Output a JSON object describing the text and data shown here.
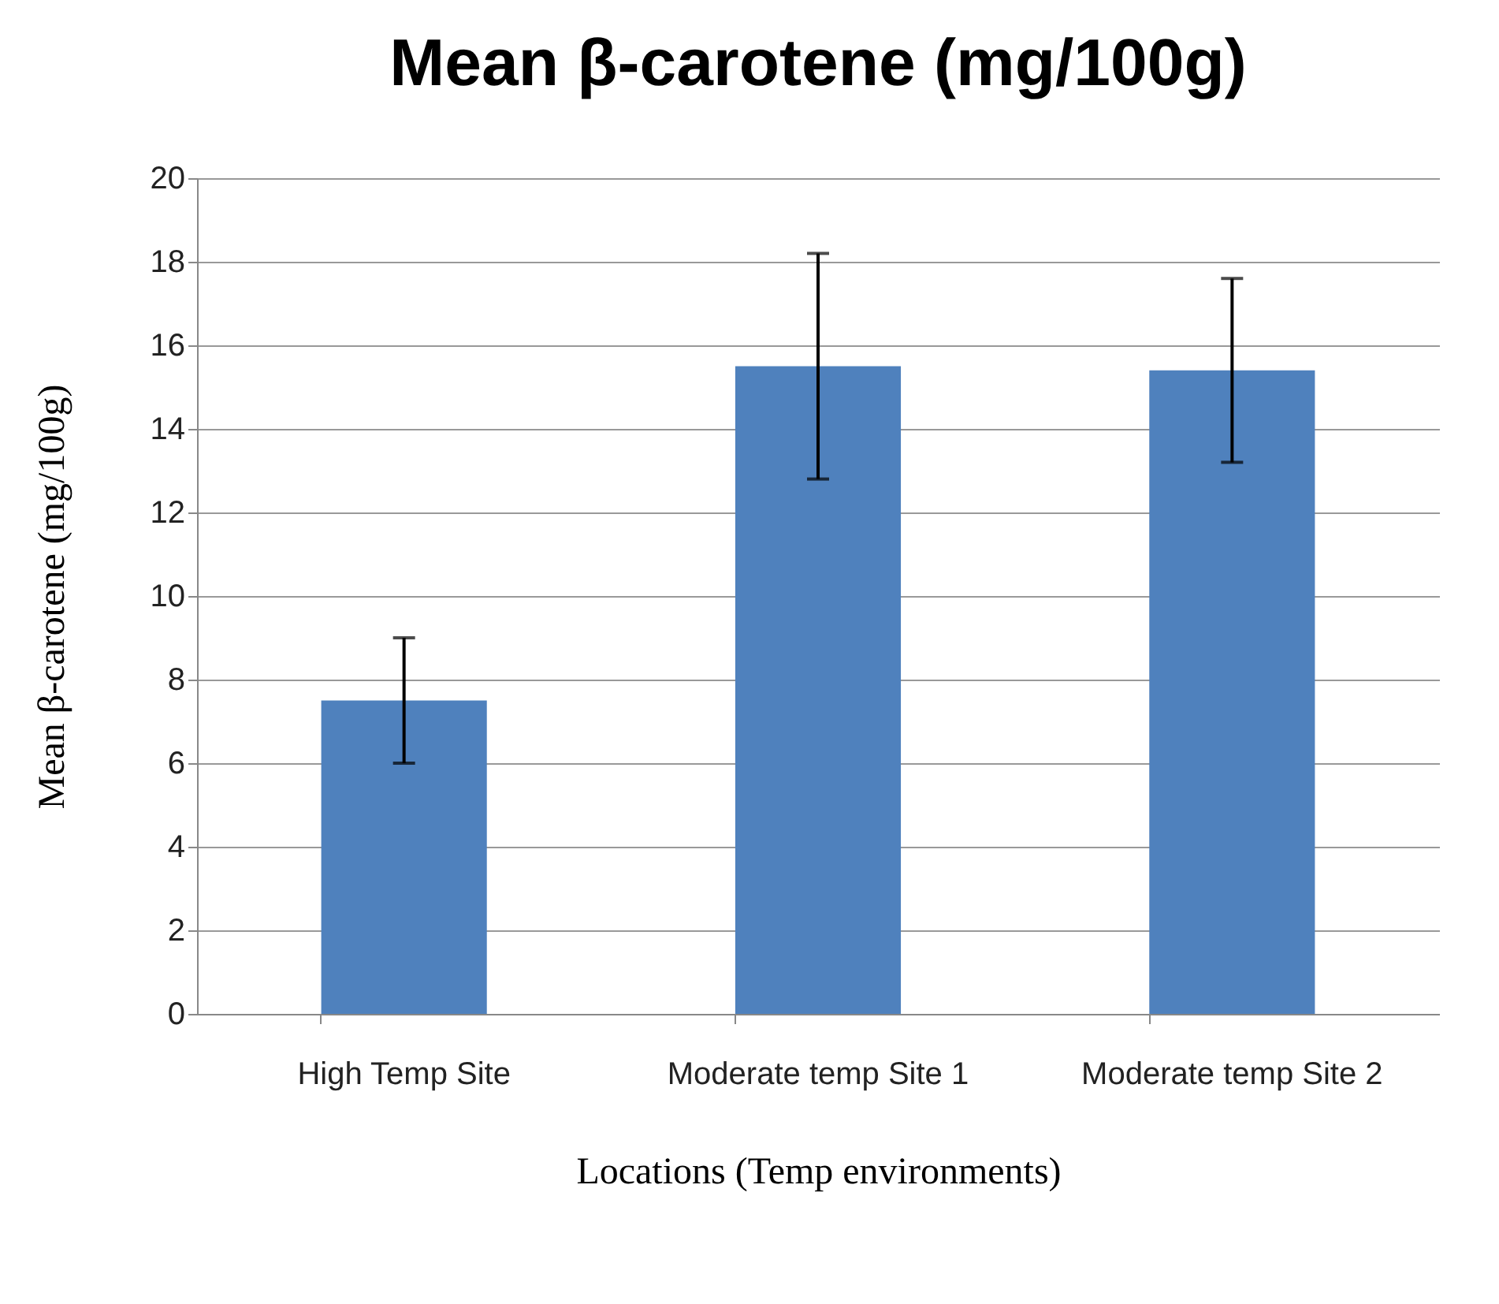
{
  "chart_data": {
    "type": "bar",
    "title": "Mean β-carotene (mg/100g)",
    "xlabel": "Locations (Temp environments)",
    "ylabel": "Mean β-carotene (mg/100g)",
    "categories": [
      "High Temp Site",
      "Moderate temp Site 1",
      "Moderate temp Site 2"
    ],
    "values": [
      7.5,
      15.5,
      15.4
    ],
    "errors": [
      1.5,
      2.7,
      2.2
    ],
    "color": "#4f81bd",
    "ylim": [
      0,
      20
    ],
    "yticks": [
      0,
      2,
      4,
      6,
      8,
      10,
      12,
      14,
      16,
      18,
      20
    ],
    "grid": "y"
  }
}
